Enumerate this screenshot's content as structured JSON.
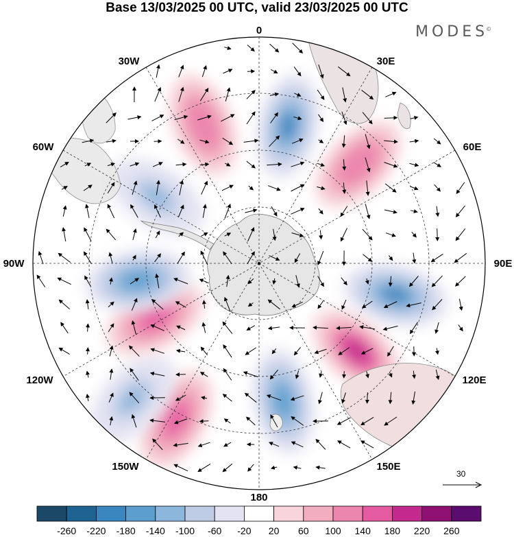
{
  "title": "Base 13/03/2025 00 UTC, valid 23/03/2025 00 UTC",
  "brand": {
    "name": "MODES",
    "mark": "©"
  },
  "longitude_labels": [
    "0",
    "30E",
    "60E",
    "90E",
    "120E",
    "150E",
    "180",
    "150W",
    "120W",
    "90W",
    "60W",
    "30W"
  ],
  "reference_vector": {
    "value": "30"
  },
  "projection": "south-polar-stereographic",
  "colorbar": {
    "ticks": [
      "-260",
      "-220",
      "-180",
      "-140",
      "-100",
      "-60",
      "-20",
      "20",
      "60",
      "100",
      "140",
      "180",
      "220",
      "260"
    ],
    "colors": [
      "#1b4867",
      "#1e6391",
      "#3a86bf",
      "#5c9ecd",
      "#8cb6dc",
      "#bfcce6",
      "#e3e3f2",
      "#ffffff",
      "#f7d5da",
      "#f2aebf",
      "#ec86ad",
      "#e55ba2",
      "#c42a8d",
      "#8e1073",
      "#5a0d6e"
    ]
  },
  "anomaly_centers": [
    {
      "sign": "negative",
      "level": -180,
      "bearing_deg": 12,
      "range": 0.62
    },
    {
      "sign": "positive",
      "level": 140,
      "bearing_deg": 45,
      "range": 0.62
    },
    {
      "sign": "negative",
      "level": -180,
      "bearing_deg": 103,
      "range": 0.62
    },
    {
      "sign": "positive",
      "level": 220,
      "bearing_deg": 132,
      "range": 0.58
    },
    {
      "sign": "negative",
      "level": -140,
      "bearing_deg": 170,
      "range": 0.62
    },
    {
      "sign": "positive",
      "level": 180,
      "bearing_deg": 208,
      "range": 0.78
    },
    {
      "sign": "negative",
      "level": -100,
      "bearing_deg": 223,
      "range": 0.82
    },
    {
      "sign": "positive",
      "level": 180,
      "bearing_deg": 242,
      "range": 0.52
    },
    {
      "sign": "negative",
      "level": -140,
      "bearing_deg": 262,
      "range": 0.54
    },
    {
      "sign": "negative",
      "level": -100,
      "bearing_deg": 303,
      "range": 0.54
    },
    {
      "sign": "positive",
      "level": 140,
      "bearing_deg": 338,
      "range": 0.66
    }
  ]
}
